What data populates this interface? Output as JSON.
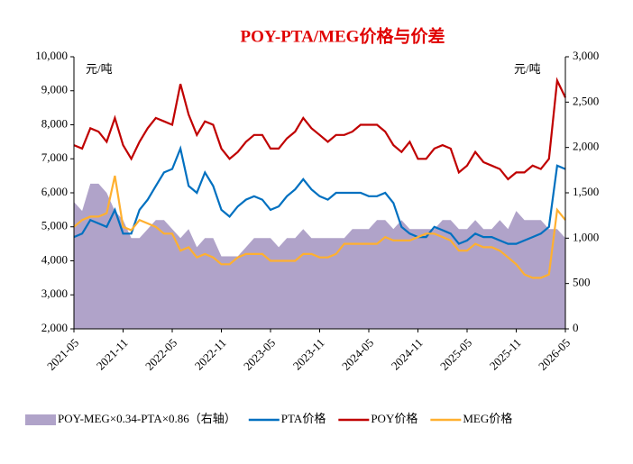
{
  "chart_data": {
    "type": "line",
    "title": "POY-PTA/MEG价格与价差",
    "y_unit": "元/吨",
    "y2_unit": "元/吨",
    "categories": [
      "2021-05",
      null,
      null,
      null,
      null,
      null,
      "2021-11",
      null,
      null,
      null,
      null,
      null,
      "2022-05",
      null,
      null,
      null,
      null,
      null,
      "2022-11",
      null,
      null,
      null,
      null,
      null,
      "2023-05",
      null,
      null,
      null,
      null,
      null,
      "2023-11",
      null,
      null,
      null,
      null,
      null,
      "2024-05",
      null,
      null,
      null,
      null,
      null,
      "2024-11",
      null,
      null,
      null,
      null,
      null,
      "2025-05",
      null,
      null,
      null,
      null,
      null,
      "2025-11",
      null,
      null,
      null,
      null,
      null,
      "2026-05"
    ],
    "ylim": [
      2000,
      10000
    ],
    "yticks": [
      {
        "value": 2000,
        "label": "2,000"
      },
      {
        "value": 3000,
        "label": "3,000"
      },
      {
        "value": 4000,
        "label": "4,000"
      },
      {
        "value": 5000,
        "label": "5,000"
      },
      {
        "value": 6000,
        "label": "6,000"
      },
      {
        "value": 7000,
        "label": "7,000"
      },
      {
        "value": 8000,
        "label": "8,000"
      },
      {
        "value": 9000,
        "label": "9,000"
      },
      {
        "value": 10000,
        "label": "10,000"
      }
    ],
    "y2lim": [
      0,
      3000
    ],
    "y2ticks": [
      0,
      500,
      {
        "value": 1000,
        "label": "1,000"
      },
      {
        "value": 1500,
        "label": "1,500"
      },
      {
        "value": 2000,
        "label": "2,000"
      },
      {
        "value": 2500,
        "label": "2,500"
      },
      {
        "value": 3000,
        "label": "3,000"
      }
    ],
    "series": [
      {
        "name": "POY-MEG×0.34-PTA×0.86（右轴）",
        "type": "area",
        "axis": "y2",
        "color": "#b0a3c9",
        "values": [
          1400,
          1300,
          1600,
          1600,
          1500,
          1300,
          1200,
          1000,
          1000,
          1100,
          1200,
          1200,
          1100,
          1000,
          1100,
          900,
          1000,
          1000,
          800,
          800,
          800,
          900,
          1000,
          1000,
          1000,
          900,
          1000,
          1000,
          1100,
          1000,
          1000,
          1000,
          1000,
          1000,
          1100,
          1100,
          1100,
          1200,
          1200,
          1100,
          1200,
          1100,
          1100,
          1100,
          1100,
          1200,
          1200,
          1100,
          1100,
          1200,
          1100,
          1100,
          1200,
          1100,
          1300,
          1200,
          1200,
          1200,
          1100,
          1100,
          1000
        ]
      },
      {
        "name": "PTA价格",
        "color": "#0070c0",
        "values": [
          4700,
          4800,
          5200,
          5100,
          5000,
          5500,
          4800,
          4800,
          5500,
          5800,
          6200,
          6600,
          6700,
          7300,
          6200,
          6000,
          6600,
          6200,
          5500,
          5300,
          5600,
          5800,
          5900,
          5800,
          5500,
          5600,
          5900,
          6100,
          6400,
          6100,
          5900,
          5800,
          6000,
          6000,
          6000,
          6000,
          5900,
          5900,
          6000,
          5700,
          5000,
          4800,
          4700,
          4700,
          5000,
          4900,
          4800,
          4500,
          4600,
          4800,
          4700,
          4700,
          4600,
          4500,
          4500,
          4600,
          4700,
          4800,
          5000,
          6800,
          6700
        ]
      },
      {
        "name": "POY价格",
        "color": "#c00000",
        "values": [
          7400,
          7300,
          7900,
          7800,
          7500,
          8200,
          7400,
          7000,
          7500,
          7900,
          8200,
          8100,
          8000,
          9200,
          8300,
          7700,
          8100,
          8000,
          7300,
          7000,
          7200,
          7500,
          7700,
          7700,
          7300,
          7300,
          7600,
          7800,
          8200,
          7900,
          7700,
          7500,
          7700,
          7700,
          7800,
          8000,
          8000,
          8000,
          7800,
          7400,
          7200,
          7500,
          7000,
          7000,
          7300,
          7400,
          7300,
          6600,
          6800,
          7200,
          6900,
          6800,
          6700,
          6400,
          6600,
          6600,
          6800,
          6700,
          7000,
          9300,
          8800
        ]
      },
      {
        "name": "MEG价格",
        "color": "#ffb030",
        "values": [
          5000,
          5200,
          5300,
          5300,
          5400,
          6500,
          5000,
          4900,
          5200,
          5100,
          5000,
          4800,
          4800,
          4300,
          4400,
          4100,
          4200,
          4100,
          3900,
          3900,
          4100,
          4200,
          4200,
          4200,
          4000,
          4000,
          4000,
          4000,
          4200,
          4200,
          4100,
          4100,
          4200,
          4500,
          4500,
          4500,
          4500,
          4500,
          4700,
          4600,
          4600,
          4600,
          4700,
          4800,
          4800,
          4700,
          4600,
          4300,
          4300,
          4500,
          4400,
          4400,
          4300,
          4100,
          3900,
          3600,
          3500,
          3500,
          3600,
          5500,
          5200
        ]
      }
    ]
  }
}
